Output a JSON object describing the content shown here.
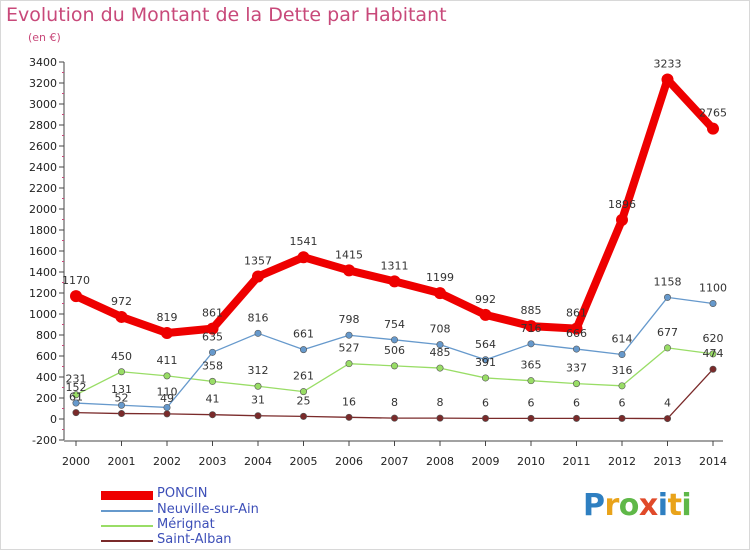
{
  "header": {
    "title": "Evolution du Montant de la Dette par Habitant",
    "unit": "(en €)"
  },
  "logo": {
    "text": "Proxiti",
    "letters": [
      {
        "ch": "P",
        "color": "#2e7fc1"
      },
      {
        "ch": "r",
        "color": "#e9a31a"
      },
      {
        "ch": "o",
        "color": "#5fb848"
      },
      {
        "ch": "x",
        "color": "#e04a2a"
      },
      {
        "ch": "i",
        "color": "#2e7fc1"
      },
      {
        "ch": "t",
        "color": "#e9a31a"
      },
      {
        "ch": "i",
        "color": "#5fb848"
      }
    ]
  },
  "chart_data": {
    "type": "line",
    "title": "Evolution du Montant de la Dette par Habitant",
    "ylabel": "(en €)",
    "xlabel": "",
    "x": [
      "2000",
      "2001",
      "2002",
      "2003",
      "2004",
      "2005",
      "2006",
      "2007",
      "2008",
      "2009",
      "2010",
      "2011",
      "2012",
      "2013",
      "2014"
    ],
    "yticks": [
      -200,
      0,
      200,
      400,
      600,
      800,
      1000,
      1200,
      1400,
      1600,
      1800,
      2000,
      2200,
      2400,
      2600,
      2800,
      3000,
      3200,
      3400
    ],
    "ylim": [
      -200,
      3400
    ],
    "grid": false,
    "legend_position": "bottom-left",
    "series": [
      {
        "name": "PONCIN",
        "color": "#ee0000",
        "values": [
          1170,
          972,
          819,
          861,
          1357,
          1541,
          1415,
          1311,
          1199,
          992,
          885,
          861,
          1896,
          3233,
          2765
        ]
      },
      {
        "name": "Neuville-sur-Ain",
        "color": "#6699cc",
        "values": [
          152,
          131,
          110,
          635,
          816,
          661,
          798,
          754,
          708,
          564,
          716,
          666,
          614,
          1158,
          1100
        ]
      },
      {
        "name": "Mérignat",
        "color": "#99dd66",
        "values": [
          231,
          450,
          411,
          358,
          312,
          261,
          527,
          506,
          485,
          391,
          365,
          337,
          316,
          677,
          620
        ]
      },
      {
        "name": "Saint-Alban",
        "color": "#7a2a2a",
        "values": [
          61,
          52,
          49,
          41,
          31,
          25,
          16,
          8,
          8,
          6,
          6,
          6,
          6,
          4,
          474
        ]
      }
    ]
  }
}
